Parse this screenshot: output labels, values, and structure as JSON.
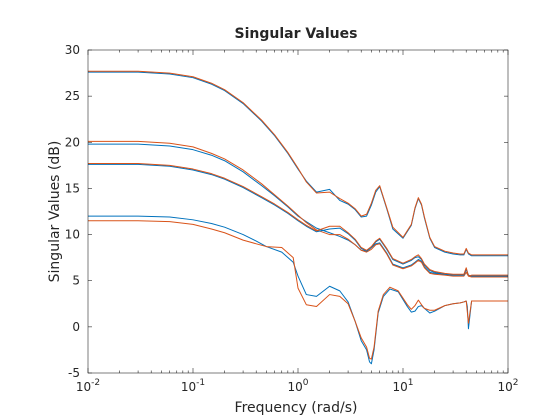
{
  "chart_data": {
    "type": "line",
    "title": "Singular Values",
    "xlabel": "Frequency (rad/s)",
    "ylabel": "Singular Values (dB)",
    "xscale": "log",
    "xlim": [
      0.01,
      100
    ],
    "ylim": [
      -5,
      30
    ],
    "grid": false,
    "x_ticks": [
      {
        "value": 0.01,
        "base": "10",
        "exp": "-2"
      },
      {
        "value": 0.1,
        "base": "10",
        "exp": "-1"
      },
      {
        "value": 1,
        "base": "10",
        "exp": "0"
      },
      {
        "value": 10,
        "base": "10",
        "exp": "1"
      },
      {
        "value": 100,
        "base": "10",
        "exp": "2"
      }
    ],
    "y_ticks": [
      {
        "value": -5,
        "label": "-5"
      },
      {
        "value": 0,
        "label": "0"
      },
      {
        "value": 5,
        "label": "5"
      },
      {
        "value": 10,
        "label": "10"
      },
      {
        "value": 15,
        "label": "15"
      },
      {
        "value": 20,
        "label": "20"
      },
      {
        "value": 25,
        "label": "25"
      },
      {
        "value": 30,
        "label": "30"
      }
    ],
    "series": [
      {
        "color": "#0072bd",
        "x": [
          0.01,
          0.03,
          0.06,
          0.1,
          0.15,
          0.2,
          0.3,
          0.45,
          0.6,
          0.8,
          1.0,
          1.2,
          1.5,
          2.0,
          2.5,
          3.0,
          3.5,
          4.0,
          4.5,
          5.0,
          5.5,
          6.0,
          7.0,
          8.0,
          10,
          12,
          13,
          14,
          15,
          16,
          18,
          20,
          25,
          30,
          35,
          38,
          40,
          42,
          45,
          50,
          60,
          80,
          100
        ],
        "y": [
          27.6,
          27.6,
          27.4,
          27.0,
          26.3,
          25.6,
          24.2,
          22.3,
          20.7,
          18.8,
          17.1,
          15.8,
          14.6,
          14.9,
          13.7,
          13.3,
          12.7,
          11.9,
          12.0,
          13.2,
          14.6,
          15.2,
          12.8,
          10.6,
          9.6,
          11.0,
          12.8,
          13.9,
          13.2,
          11.8,
          9.6,
          8.6,
          8.1,
          7.9,
          7.8,
          7.8,
          8.4,
          7.9,
          7.7,
          7.7,
          7.7,
          7.7,
          7.7
        ]
      },
      {
        "color": "#d95319",
        "x": [
          0.01,
          0.03,
          0.06,
          0.1,
          0.15,
          0.2,
          0.3,
          0.45,
          0.6,
          0.8,
          1.0,
          1.2,
          1.5,
          2.0,
          2.5,
          3.0,
          3.5,
          4.0,
          4.5,
          5.0,
          5.5,
          6.0,
          7.0,
          8.0,
          10,
          12,
          13,
          14,
          15,
          16,
          18,
          20,
          25,
          30,
          35,
          38,
          40,
          42,
          45,
          50,
          60,
          80,
          100
        ],
        "y": [
          27.7,
          27.7,
          27.5,
          27.1,
          26.4,
          25.7,
          24.3,
          22.4,
          20.8,
          18.9,
          17.2,
          15.7,
          14.5,
          14.6,
          13.9,
          13.4,
          12.8,
          12.0,
          12.2,
          13.4,
          14.8,
          15.3,
          12.9,
          10.8,
          9.7,
          11.1,
          12.9,
          14.0,
          13.3,
          11.9,
          9.7,
          8.7,
          8.2,
          8.0,
          7.9,
          7.9,
          8.5,
          8.0,
          7.8,
          7.8,
          7.8,
          7.8,
          7.8
        ]
      },
      {
        "color": "#0072bd",
        "x": [
          0.01,
          0.03,
          0.06,
          0.1,
          0.15,
          0.2,
          0.3,
          0.45,
          0.6,
          0.8,
          1.0,
          1.2,
          1.5,
          2.0,
          2.5,
          3.0,
          3.5,
          4.0,
          4.5,
          5.0,
          5.5,
          6.0,
          7.0,
          8.0,
          10,
          12,
          13,
          14,
          15,
          16,
          18,
          20,
          25,
          30,
          35,
          38,
          40,
          42,
          45,
          50,
          60,
          80,
          100
        ],
        "y": [
          19.8,
          19.8,
          19.6,
          19.2,
          18.6,
          18.0,
          16.8,
          15.3,
          14.2,
          13.0,
          12.0,
          11.4,
          10.7,
          10.2,
          9.8,
          9.4,
          8.9,
          8.3,
          8.2,
          8.6,
          9.0,
          9.1,
          8.0,
          6.8,
          6.4,
          6.7,
          7.0,
          7.3,
          7.1,
          6.5,
          5.9,
          5.8,
          5.7,
          5.6,
          5.6,
          5.6,
          6.2,
          5.6,
          5.5,
          5.5,
          5.5,
          5.5,
          5.5
        ]
      },
      {
        "color": "#d95319",
        "x": [
          0.01,
          0.03,
          0.06,
          0.1,
          0.15,
          0.2,
          0.3,
          0.45,
          0.6,
          0.8,
          1.0,
          1.2,
          1.5,
          2.0,
          2.5,
          3.0,
          3.5,
          4.0,
          4.5,
          5.0,
          5.5,
          6.0,
          7.0,
          8.0,
          10,
          12,
          13,
          14,
          15,
          16,
          18,
          20,
          25,
          30,
          35,
          38,
          40,
          42,
          45,
          50,
          60,
          80,
          100
        ],
        "y": [
          20.1,
          20.1,
          19.9,
          19.5,
          18.8,
          18.2,
          17.0,
          15.5,
          14.3,
          13.1,
          12.1,
          11.3,
          10.5,
          10.0,
          10.0,
          9.5,
          8.9,
          8.3,
          8.1,
          8.4,
          8.9,
          9.0,
          7.9,
          6.7,
          6.3,
          6.6,
          6.9,
          7.2,
          7.0,
          6.4,
          5.8,
          5.7,
          5.6,
          5.5,
          5.5,
          5.5,
          5.9,
          5.5,
          5.4,
          5.4,
          5.4,
          5.4,
          5.4
        ]
      },
      {
        "color": "#0072bd",
        "x": [
          0.01,
          0.03,
          0.06,
          0.1,
          0.15,
          0.2,
          0.3,
          0.45,
          0.6,
          0.8,
          1.0,
          1.2,
          1.5,
          2.0,
          2.5,
          3.0,
          3.5,
          4.0,
          4.5,
          5.0,
          5.5,
          6.0,
          7.0,
          8.0,
          10,
          12,
          13,
          14,
          15,
          16,
          18,
          20,
          25,
          30,
          35,
          38,
          40,
          42,
          45,
          50,
          60,
          80,
          100
        ],
        "y": [
          17.6,
          17.6,
          17.4,
          17.0,
          16.5,
          16.0,
          15.1,
          14.0,
          13.2,
          12.3,
          11.5,
          10.9,
          10.3,
          10.6,
          10.7,
          10.1,
          9.4,
          8.5,
          8.2,
          8.6,
          9.2,
          9.5,
          8.4,
          7.3,
          6.8,
          7.2,
          7.5,
          7.6,
          7.3,
          6.7,
          6.1,
          5.9,
          5.7,
          5.6,
          5.6,
          5.6,
          6.3,
          5.6,
          5.5,
          5.5,
          5.5,
          5.5,
          5.5
        ]
      },
      {
        "color": "#d95319",
        "x": [
          0.01,
          0.03,
          0.06,
          0.1,
          0.15,
          0.2,
          0.3,
          0.45,
          0.6,
          0.8,
          1.0,
          1.2,
          1.5,
          2.0,
          2.5,
          3.0,
          3.5,
          4.0,
          4.5,
          5.0,
          5.5,
          6.0,
          7.0,
          8.0,
          10,
          12,
          13,
          14,
          15,
          16,
          18,
          20,
          25,
          30,
          35,
          38,
          40,
          42,
          45,
          50,
          60,
          80,
          100
        ],
        "y": [
          17.7,
          17.7,
          17.5,
          17.1,
          16.6,
          16.1,
          15.2,
          14.1,
          13.3,
          12.4,
          11.6,
          11.0,
          10.4,
          10.9,
          10.9,
          10.2,
          9.5,
          8.6,
          8.3,
          8.7,
          9.3,
          9.6,
          8.5,
          7.4,
          6.9,
          7.3,
          7.6,
          7.8,
          7.4,
          6.8,
          6.2,
          6.0,
          5.8,
          5.7,
          5.7,
          5.7,
          6.4,
          5.5,
          5.6,
          5.6,
          5.6,
          5.6,
          5.6
        ]
      },
      {
        "color": "#0072bd",
        "x": [
          0.01,
          0.03,
          0.06,
          0.1,
          0.15,
          0.2,
          0.3,
          0.4,
          0.5,
          0.7,
          0.9,
          1.0,
          1.2,
          1.5,
          2.0,
          2.5,
          3.0,
          3.5,
          4.0,
          4.5,
          4.8,
          5.0,
          5.3,
          5.8,
          6.5,
          7.5,
          9,
          11,
          12,
          13,
          14,
          15,
          16,
          18,
          20,
          25,
          30,
          35,
          38,
          40,
          41,
          42,
          45,
          50,
          60,
          80,
          100
        ],
        "y": [
          12.0,
          12.0,
          11.9,
          11.6,
          11.2,
          10.8,
          10.0,
          9.3,
          8.7,
          8.1,
          7.0,
          5.5,
          3.5,
          3.3,
          4.4,
          3.9,
          2.7,
          0.6,
          -1.5,
          -2.5,
          -3.8,
          -4.0,
          -2.5,
          1.5,
          3.3,
          4.1,
          3.8,
          2.2,
          1.6,
          1.7,
          2.2,
          2.3,
          2.0,
          1.5,
          1.7,
          2.3,
          2.5,
          2.6,
          2.7,
          2.8,
          2.2,
          -0.2,
          2.8,
          2.8,
          2.8,
          2.8,
          2.8
        ]
      },
      {
        "color": "#d95319",
        "x": [
          0.01,
          0.03,
          0.06,
          0.1,
          0.15,
          0.2,
          0.3,
          0.4,
          0.5,
          0.7,
          0.9,
          1.0,
          1.2,
          1.5,
          2.0,
          2.5,
          3.0,
          3.5,
          4.0,
          4.5,
          4.8,
          5.0,
          5.3,
          5.8,
          6.5,
          7.5,
          9,
          11,
          12,
          13,
          14,
          15,
          16,
          18,
          20,
          25,
          30,
          35,
          38,
          40,
          41,
          42,
          45,
          50,
          60,
          80,
          100
        ],
        "y": [
          11.5,
          11.5,
          11.4,
          11.1,
          10.6,
          10.2,
          9.4,
          9.0,
          8.7,
          8.6,
          7.5,
          4.2,
          2.4,
          2.2,
          3.5,
          3.3,
          2.5,
          0.6,
          -1.2,
          -2.2,
          -3.4,
          -3.5,
          -2.2,
          1.7,
          3.5,
          4.3,
          3.9,
          2.4,
          1.9,
          2.3,
          2.9,
          2.4,
          2.0,
          1.8,
          1.8,
          2.3,
          2.5,
          2.6,
          2.7,
          2.8,
          1.6,
          0.4,
          2.8,
          2.8,
          2.8,
          2.8,
          2.8
        ]
      }
    ]
  }
}
